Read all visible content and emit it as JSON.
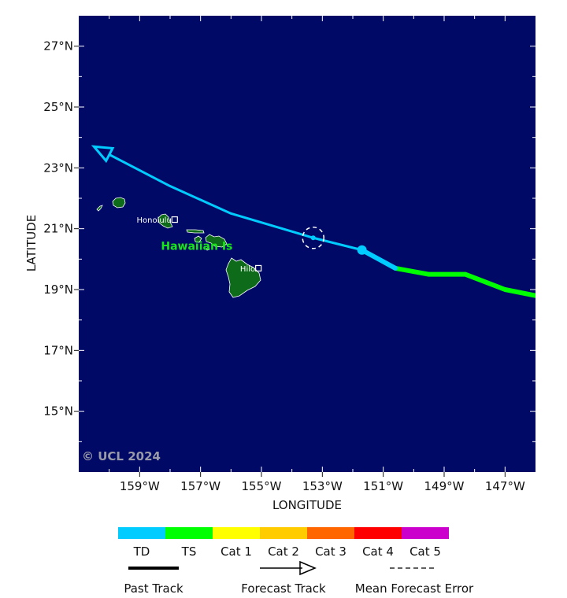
{
  "map": {
    "xlabel": "LONGITUDE",
    "ylabel": "LATITUDE",
    "x_range": [
      -161.0,
      -146.0
    ],
    "y_range": [
      13.0,
      28.0
    ],
    "lat_labels": [
      {
        "value": 15,
        "text": "15°N"
      },
      {
        "value": 17,
        "text": "17°N"
      },
      {
        "value": 19,
        "text": "19°N"
      },
      {
        "value": 21,
        "text": "21°N"
      },
      {
        "value": 23,
        "text": "23°N"
      },
      {
        "value": 25,
        "text": "25°N"
      },
      {
        "value": 27,
        "text": "27°N"
      }
    ],
    "lon_labels": [
      {
        "value": -159,
        "text": "159°W"
      },
      {
        "value": -157,
        "text": "157°W"
      },
      {
        "value": -155,
        "text": "155°W"
      },
      {
        "value": -153,
        "text": "153°W"
      },
      {
        "value": -151,
        "text": "151°W"
      },
      {
        "value": -149,
        "text": "149°W"
      },
      {
        "value": -147,
        "text": "147°W"
      }
    ],
    "ocean_color": "#000a66",
    "land_color": "#0e6b1a",
    "region_label": "Hawaiian Is",
    "region_label_pos": {
      "lon": -158.3,
      "lat": 20.3
    },
    "region_label_color": "#19e619",
    "cities": [
      {
        "name": "Honolulu",
        "lon": -157.85,
        "lat": 21.3
      },
      {
        "name": "Hilo",
        "lon": -155.1,
        "lat": 19.7
      }
    ],
    "copyright": "© UCL 2024"
  },
  "chart_data": {
    "type": "line",
    "past_track": {
      "ts_segment": [
        {
          "lon": -146.0,
          "lat": 18.8
        },
        {
          "lon": -147.0,
          "lat": 19.0
        },
        {
          "lon": -148.3,
          "lat": 19.5
        },
        {
          "lon": -149.5,
          "lat": 19.5
        },
        {
          "lon": -150.6,
          "lat": 19.7
        }
      ],
      "td_segment": [
        {
          "lon": -150.6,
          "lat": 19.7
        },
        {
          "lon": -151.7,
          "lat": 20.3
        }
      ],
      "current_position": {
        "lon": -151.7,
        "lat": 20.3
      }
    },
    "forecast_track": [
      {
        "lon": -151.7,
        "lat": 20.3
      },
      {
        "lon": -153.3,
        "lat": 20.7
      },
      {
        "lon": -156.0,
        "lat": 21.5
      },
      {
        "lon": -158.0,
        "lat": 22.4
      },
      {
        "lon": -160.5,
        "lat": 23.7
      }
    ],
    "forecast_point": {
      "lon": -153.3,
      "lat": 20.7
    },
    "error_circle": {
      "lon": -153.3,
      "lat": 20.7,
      "radius_deg": 0.35
    },
    "colors": {
      "td": "#00ccff",
      "ts": "#00ff00"
    }
  },
  "legend": {
    "categories": [
      {
        "label": "TD",
        "color": "#00ccff"
      },
      {
        "label": "TS",
        "color": "#00ff00"
      },
      {
        "label": "Cat 1",
        "color": "#ffff00"
      },
      {
        "label": "Cat 2",
        "color": "#ffcc00"
      },
      {
        "label": "Cat 3",
        "color": "#ff6600"
      },
      {
        "label": "Cat 4",
        "color": "#ff0000"
      },
      {
        "label": "Cat 5",
        "color": "#cc00cc"
      }
    ],
    "past_track_label": "Past Track",
    "forecast_track_label": "Forecast Track",
    "error_label": "Mean Forecast Error"
  }
}
